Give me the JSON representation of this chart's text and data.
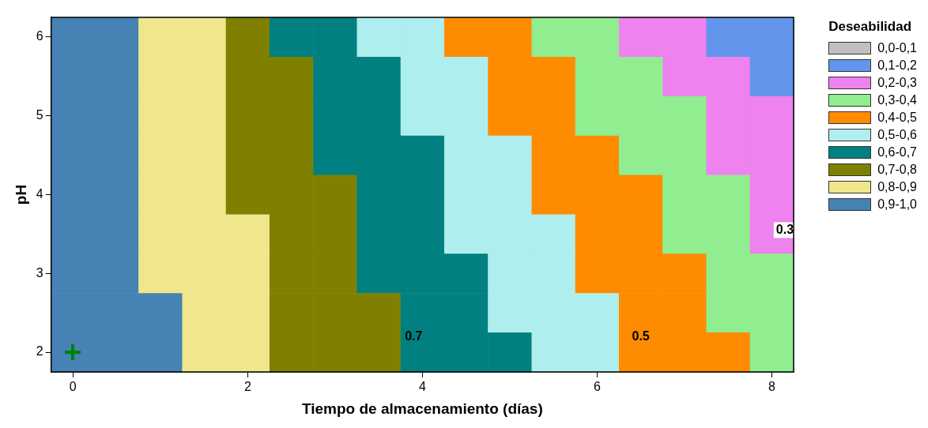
{
  "chart_data": {
    "type": "heatmap",
    "xlabel": "Tiempo de almacenamiento (días)",
    "ylabel": "pH",
    "legend_title": "Deseabilidad",
    "categories": [
      "0",
      null,
      null,
      null,
      "2",
      null,
      null,
      null,
      "4",
      null,
      null,
      null,
      "6",
      null,
      null,
      null,
      "8"
    ],
    "y_categories": [
      "6",
      null,
      "5",
      null,
      "4",
      null,
      "3",
      null,
      "2"
    ],
    "cticks": [
      {
        "value": 0.05,
        "label": "0,0-0,1"
      },
      {
        "value": 0.15,
        "label": "0,1-0,2"
      },
      {
        "value": 0.25,
        "label": "0,2-0,3"
      },
      {
        "value": 0.35,
        "label": "0,3-0,4"
      },
      {
        "value": 0.45,
        "label": "0,4-0,5"
      },
      {
        "value": 0.55,
        "label": "0,5-0,6"
      },
      {
        "value": 0.65,
        "label": "0,6-0,7"
      },
      {
        "value": 0.75,
        "label": "0,7-0,8"
      },
      {
        "value": 0.85,
        "label": "0,8-0,9"
      },
      {
        "value": 0.95,
        "label": "0,9-1,0"
      }
    ],
    "colors": [
      "#c0c0c0",
      "#6495ed",
      "#ee82ee",
      "#90ee90",
      "#ff8c00",
      "#afeeee",
      "#008080",
      "#808000",
      "#f0e68c",
      "#4682b4"
    ],
    "cells": [
      [
        0.95,
        0.95,
        0.85,
        0.85,
        0.75,
        0.65,
        0.65,
        0.55,
        0.55,
        0.45,
        0.45,
        0.35,
        0.35,
        0.25,
        0.25,
        0.15,
        0.15
      ],
      [
        0.95,
        0.95,
        0.85,
        0.85,
        0.75,
        0.75,
        0.65,
        0.65,
        0.55,
        0.55,
        0.45,
        0.45,
        0.35,
        0.35,
        0.25,
        0.25,
        0.15
      ],
      [
        0.95,
        0.95,
        0.85,
        0.85,
        0.75,
        0.75,
        0.65,
        0.65,
        0.55,
        0.55,
        0.45,
        0.45,
        0.35,
        0.35,
        0.35,
        0.25,
        0.25
      ],
      [
        0.95,
        0.95,
        0.85,
        0.85,
        0.75,
        0.75,
        0.65,
        0.65,
        0.65,
        0.55,
        0.55,
        0.45,
        0.45,
        0.35,
        0.35,
        0.25,
        0.25
      ],
      [
        0.95,
        0.95,
        0.85,
        0.85,
        0.75,
        0.75,
        0.75,
        0.65,
        0.65,
        0.55,
        0.55,
        0.45,
        0.45,
        0.45,
        0.35,
        0.35,
        0.25
      ],
      [
        0.95,
        0.95,
        0.85,
        0.85,
        0.85,
        0.75,
        0.75,
        0.65,
        0.65,
        0.55,
        0.55,
        0.55,
        0.45,
        0.45,
        0.35,
        0.35,
        0.25
      ],
      [
        0.95,
        0.95,
        0.85,
        0.85,
        0.85,
        0.75,
        0.75,
        0.65,
        0.65,
        0.65,
        0.55,
        0.55,
        0.45,
        0.45,
        0.45,
        0.35,
        0.35
      ],
      [
        0.95,
        0.95,
        0.95,
        0.85,
        0.85,
        0.75,
        0.75,
        0.75,
        0.65,
        0.65,
        0.55,
        0.55,
        0.55,
        0.45,
        0.45,
        0.35,
        0.35
      ],
      [
        0.95,
        0.95,
        0.95,
        0.85,
        0.85,
        0.75,
        0.75,
        0.75,
        0.65,
        0.65,
        0.65,
        0.55,
        0.55,
        0.45,
        0.45,
        0.45,
        0.35
      ]
    ],
    "annotations": [
      "0.7",
      "0.5",
      "0.3"
    ]
  }
}
